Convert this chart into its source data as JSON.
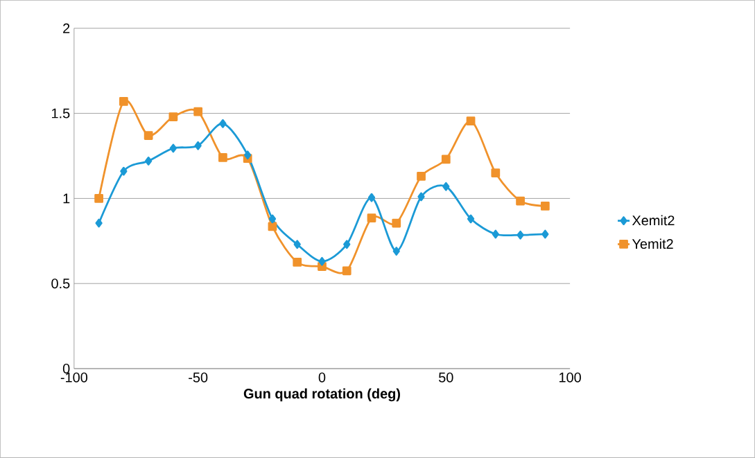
{
  "chart_data": {
    "type": "line",
    "xlabel": "Gun quad rotation (deg)",
    "x": [
      -90,
      -80,
      -70,
      -60,
      -50,
      -40,
      -30,
      -20,
      -10,
      0,
      10,
      20,
      30,
      40,
      50,
      60,
      70,
      80,
      90
    ],
    "series": [
      {
        "name": "Xemit2",
        "color": "#1b9ad6",
        "marker": "diamond",
        "values": [
          0.855,
          1.16,
          1.22,
          1.295,
          1.31,
          1.44,
          1.255,
          0.88,
          0.73,
          0.63,
          0.73,
          1.005,
          0.69,
          1.01,
          1.07,
          0.88,
          0.79,
          0.785,
          0.79
        ]
      },
      {
        "name": "Yemit2",
        "color": "#f0922b",
        "marker": "square",
        "values": [
          1.0,
          1.57,
          1.37,
          1.48,
          1.51,
          1.24,
          1.235,
          0.835,
          0.625,
          0.6,
          0.575,
          0.885,
          0.855,
          1.13,
          1.23,
          1.455,
          1.15,
          0.985,
          0.955
        ]
      }
    ],
    "xlim": [
      -100,
      100
    ],
    "xticks": [
      -100,
      -50,
      0,
      50,
      100
    ],
    "ylim": [
      0,
      2
    ],
    "yticks": [
      0,
      0.5,
      1,
      1.5,
      2
    ],
    "grid": "y",
    "legend": "right",
    "line_style": "solid"
  }
}
